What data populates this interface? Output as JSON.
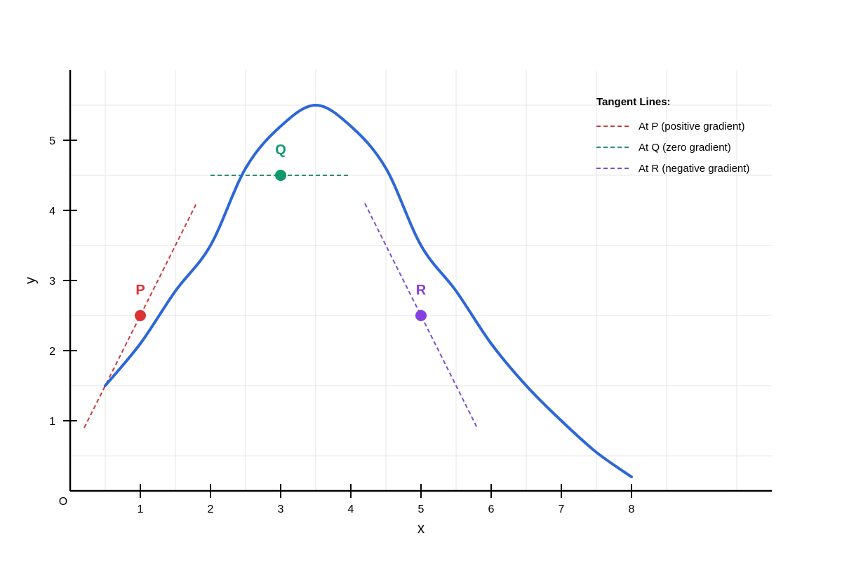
{
  "chart_data": {
    "type": "line",
    "xlabel": "x",
    "ylabel": "y",
    "origin_label": "O",
    "xlim": [
      -1,
      9
    ],
    "ylim": [
      0,
      5.5
    ],
    "grid": true,
    "x_ticks": [
      1,
      2,
      3,
      4,
      5,
      6,
      7,
      8
    ],
    "y_ticks": [
      1,
      2,
      3,
      4,
      5
    ],
    "curve": {
      "color": "#2d66d8",
      "points": [
        [
          0.5,
          1.5
        ],
        [
          1.0,
          2.1
        ],
        [
          1.5,
          2.85
        ],
        [
          2.0,
          3.5
        ],
        [
          2.5,
          4.6
        ],
        [
          3.0,
          5.2
        ],
        [
          3.5,
          5.5
        ],
        [
          4.0,
          5.2
        ],
        [
          4.5,
          4.6
        ],
        [
          5.0,
          3.5
        ],
        [
          5.5,
          2.85
        ],
        [
          6.0,
          2.1
        ],
        [
          6.5,
          1.5
        ],
        [
          7.0,
          1.0
        ],
        [
          7.5,
          0.55
        ],
        [
          8.0,
          0.2
        ]
      ]
    },
    "points": [
      {
        "label": "P",
        "x": 1,
        "y": 2.5,
        "color": "#dc3232"
      },
      {
        "label": "Q",
        "x": 3,
        "y": 4.5,
        "color": "#0e9a6a"
      },
      {
        "label": "R",
        "x": 5,
        "y": 2.5,
        "color": "#8640e0"
      }
    ],
    "tangents": [
      {
        "name": "At P (positive gradient)",
        "color": "#c83c3c",
        "from": [
          0.2,
          0.9
        ],
        "to": [
          1.8,
          4.1
        ]
      },
      {
        "name": "At Q (zero gradient)",
        "color": "#2a8f72",
        "from": [
          2.0,
          4.5
        ],
        "to": [
          4.0,
          4.5
        ]
      },
      {
        "name": "At R (negative gradient)",
        "color": "#7d50c8",
        "from": [
          4.2,
          4.1
        ],
        "to": [
          5.8,
          0.9
        ]
      }
    ],
    "legend": {
      "title": "Tangent Lines:",
      "placement": "top-right"
    }
  }
}
